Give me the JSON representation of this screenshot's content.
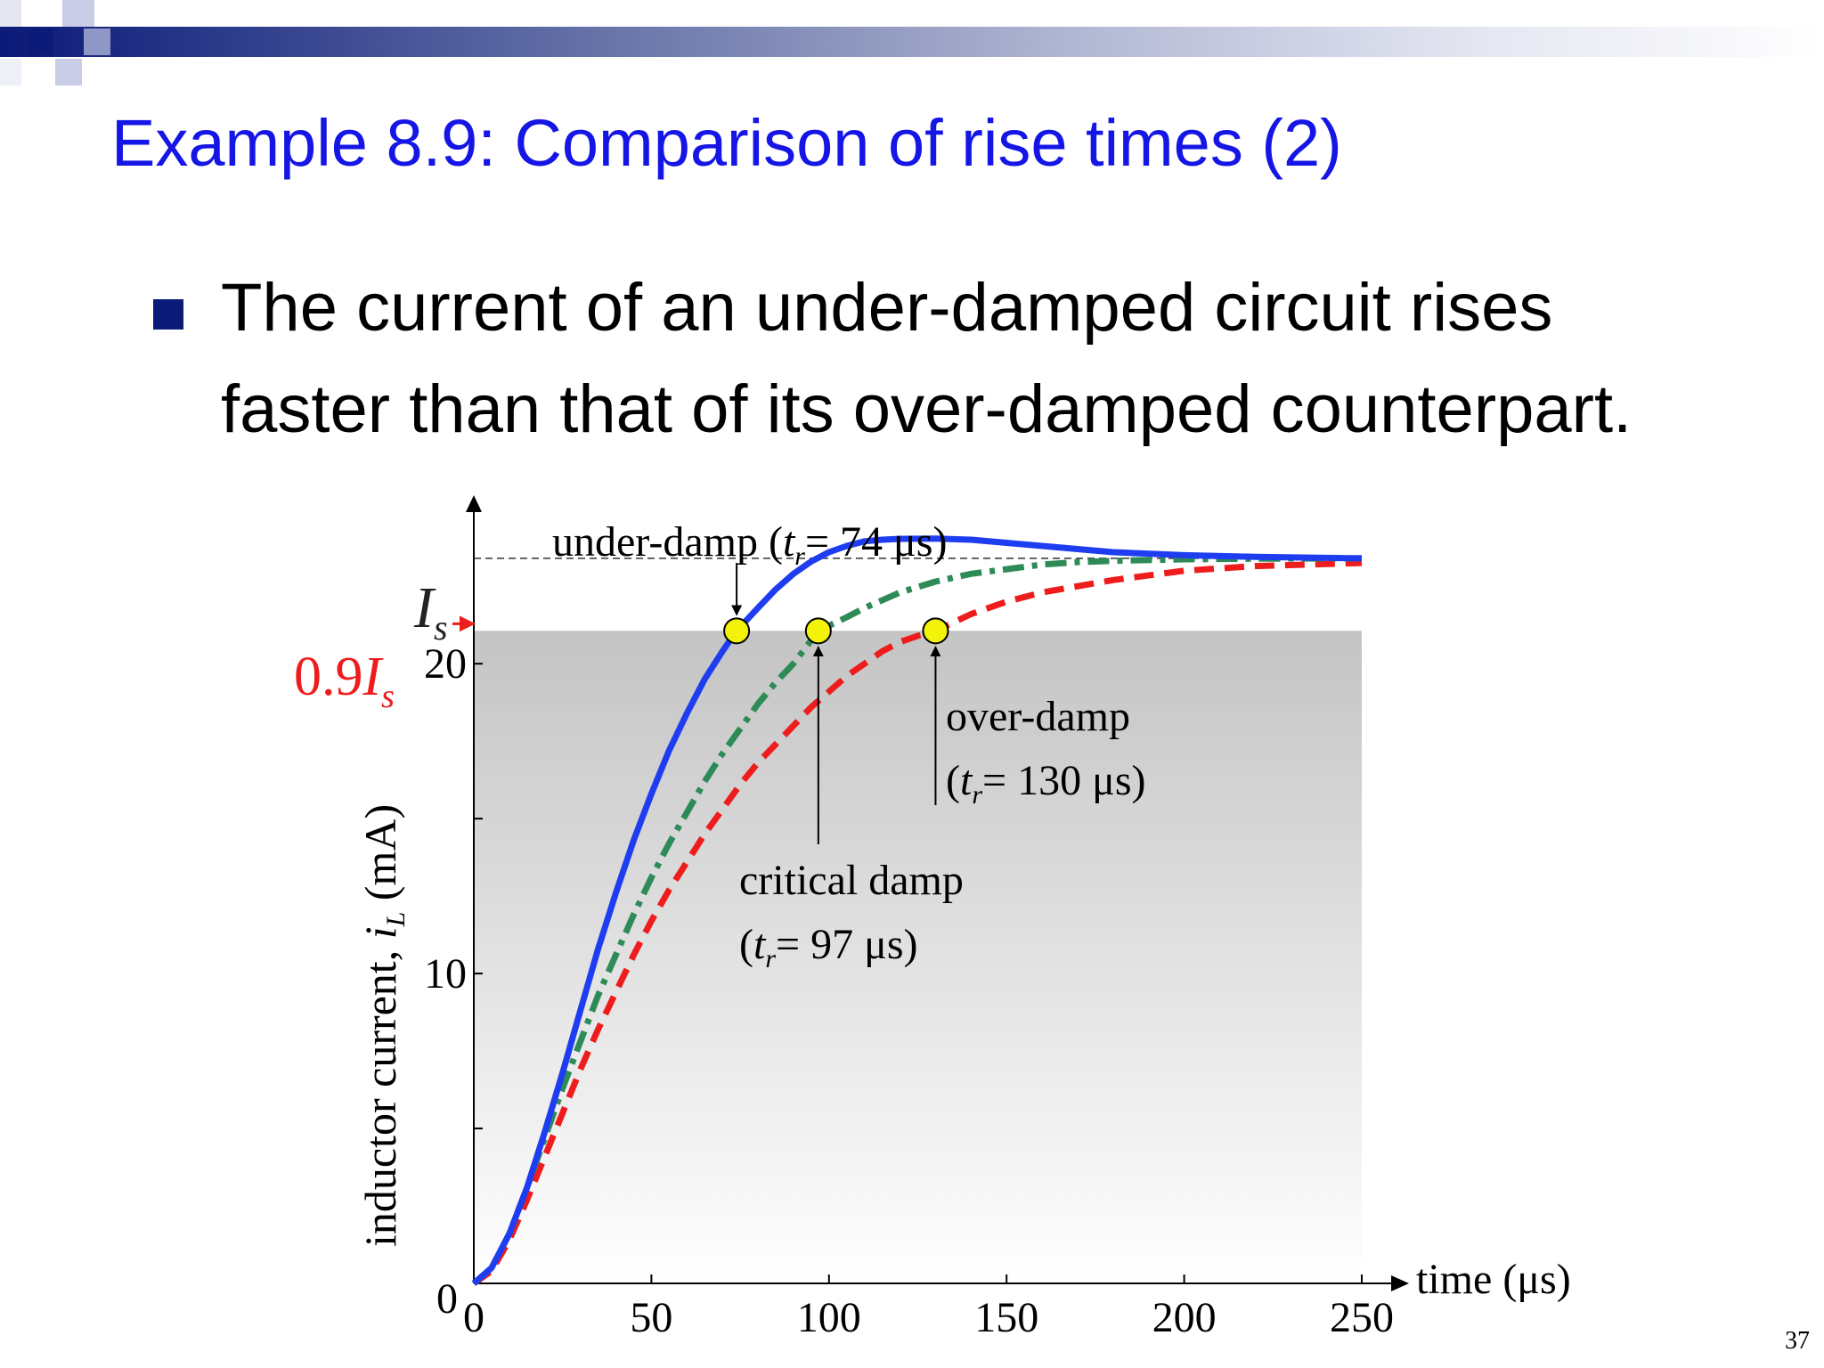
{
  "slide": {
    "title": "Example 8.9: Comparison of rise times (2)",
    "bullet": {
      "line1": "The current of an under-damped circuit rises",
      "line2": "faster than that of its over-damped counterpart."
    },
    "page_number": "37",
    "colors": {
      "header_dark": "#0c1a78",
      "title": "#1515e6",
      "under_damp": "#1f3df0",
      "critical_damp": "#2e8b57",
      "over_damp": "#ee1c1c",
      "marker": "#f2f20a"
    }
  },
  "chart_data": {
    "type": "line",
    "xlabel": "time (μs)",
    "ylabel": "inductor current, i_L (mA)",
    "ylabel_parts": {
      "pre": "inductor current, ",
      "var": "i",
      "sub": "L",
      "post": " (mA)"
    },
    "xlim": [
      0,
      250
    ],
    "ylim": [
      0,
      23.8
    ],
    "x_ticks": [
      0,
      50,
      100,
      150,
      200,
      250
    ],
    "y_ticks": [
      0,
      10,
      20
    ],
    "y_minor_ticks": [
      5,
      15
    ],
    "origin_x_label": "0",
    "origin_y_label": "0",
    "Is_value": 23.4,
    "Is_label": {
      "var": "I",
      "sub": "s"
    },
    "Is09_label": {
      "coef": "0.9",
      "var": "I",
      "sub": "s"
    },
    "threshold": 21.06,
    "series": [
      {
        "key": "under",
        "label": "under-damp",
        "rise_time": 74,
        "rise_unit": "μs",
        "x": [
          0,
          5,
          10,
          15,
          20,
          25,
          30,
          35,
          40,
          45,
          50,
          55,
          60,
          65,
          70,
          74,
          80,
          85,
          90,
          95,
          100,
          105,
          110,
          115,
          120,
          130,
          140,
          150,
          160,
          170,
          180,
          200,
          220,
          250
        ],
        "y": [
          0,
          0.5,
          1.6,
          3.1,
          4.9,
          6.8,
          8.8,
          10.8,
          12.6,
          14.3,
          15.8,
          17.2,
          18.4,
          19.5,
          20.4,
          21.06,
          21.8,
          22.4,
          22.9,
          23.3,
          23.6,
          23.8,
          23.95,
          24.0,
          24.03,
          24.04,
          24.0,
          23.9,
          23.8,
          23.7,
          23.6,
          23.5,
          23.45,
          23.4
        ]
      },
      {
        "key": "critical",
        "label": "critical damp",
        "rise_time": 97,
        "rise_unit": "μs",
        "x": [
          0,
          5,
          10,
          15,
          20,
          25,
          30,
          35,
          40,
          45,
          50,
          55,
          60,
          65,
          70,
          75,
          80,
          85,
          90,
          97,
          105,
          110,
          120,
          130,
          140,
          150,
          160,
          170,
          180,
          200,
          220,
          250
        ],
        "y": [
          0,
          0.5,
          1.6,
          3.1,
          4.7,
          6.3,
          7.8,
          9.3,
          10.6,
          11.9,
          13.1,
          14.2,
          15.2,
          16.2,
          17.1,
          17.9,
          18.7,
          19.4,
          20.0,
          21.06,
          21.5,
          21.8,
          22.3,
          22.65,
          22.9,
          23.05,
          23.2,
          23.28,
          23.32,
          23.37,
          23.39,
          23.4
        ]
      },
      {
        "key": "over",
        "label": "over-damp",
        "rise_time": 130,
        "rise_unit": "μs",
        "x": [
          0,
          5,
          10,
          15,
          20,
          25,
          30,
          35,
          40,
          45,
          50,
          55,
          60,
          65,
          70,
          75,
          80,
          85,
          90,
          95,
          100,
          105,
          110,
          115,
          120,
          125,
          130,
          140,
          150,
          160,
          180,
          200,
          220,
          250
        ],
        "y": [
          0,
          0.4,
          1.4,
          2.7,
          4.1,
          5.5,
          6.9,
          8.2,
          9.4,
          10.6,
          11.7,
          12.7,
          13.6,
          14.5,
          15.3,
          16.1,
          16.8,
          17.4,
          18.0,
          18.6,
          19.1,
          19.6,
          20.0,
          20.4,
          20.7,
          20.9,
          21.06,
          21.6,
          22.0,
          22.3,
          22.7,
          23.0,
          23.15,
          23.25
        ]
      }
    ]
  }
}
